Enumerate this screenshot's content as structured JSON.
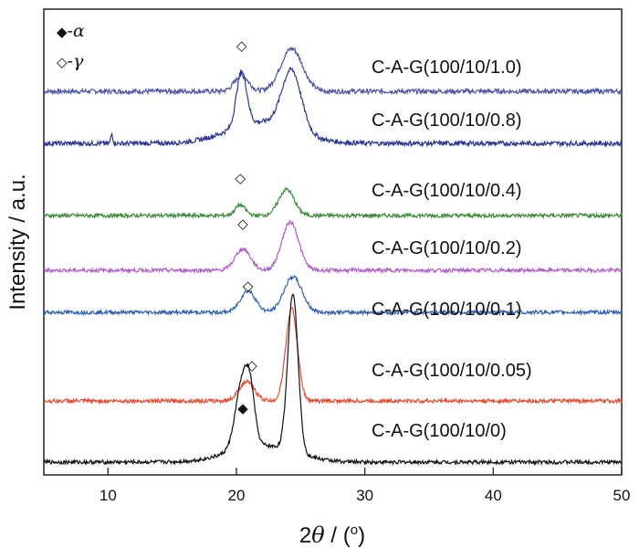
{
  "chart_data": {
    "type": "line",
    "title": "",
    "xlabel_prefix": "2",
    "xlabel_theta": "θ",
    "xlabel_suffix": " / (",
    "xlabel_degree": "o",
    "xlabel_close": ")",
    "ylabel": "Intensity / a.u.",
    "xlim": [
      5,
      50
    ],
    "x_ticks": [
      10,
      20,
      30,
      40,
      50
    ],
    "y_ticks": [],
    "grid": false,
    "legend": [
      {
        "symbol": "◆",
        "separator": "-",
        "name": "α"
      },
      {
        "symbol": "◇",
        "separator": "-",
        "name": "γ"
      }
    ],
    "series": [
      {
        "name": "C-A-G(100/10/1.0)",
        "color": "#4a55a8",
        "baseline": 0.0,
        "peaks": [
          [
            20.4,
            0.33,
            0.55
          ],
          [
            24.3,
            0.9,
            0.85
          ]
        ],
        "bump_extra": [],
        "noise": 0.05,
        "marker": {
          "x": 20.4,
          "symbol": "◇"
        }
      },
      {
        "name": "C-A-G(100/10/0.8)",
        "color": "#283593",
        "baseline": 0.0,
        "peaks": [
          [
            20.4,
            1.15,
            0.4
          ],
          [
            24.3,
            1.25,
            0.75
          ],
          [
            10.3,
            0.2,
            0.08
          ]
        ],
        "bump_extra": [
          [
            22.0,
            0.45,
            2.6
          ]
        ],
        "noise": 0.05,
        "marker": null
      },
      {
        "name": "C-A-G(100/10/0.4)",
        "color": "#3c8c35",
        "baseline": 0.0,
        "peaks": [
          [
            20.3,
            0.22,
            0.4
          ],
          [
            23.9,
            0.55,
            0.6
          ]
        ],
        "bump_extra": [],
        "noise": 0.04,
        "marker": {
          "x": 20.3,
          "symbol": "◇"
        }
      },
      {
        "name": "C-A-G(100/10/0.2)",
        "color": "#b05cc9",
        "baseline": 0.0,
        "peaks": [
          [
            20.5,
            0.45,
            0.6
          ],
          [
            24.2,
            1.02,
            0.65
          ]
        ],
        "bump_extra": [],
        "noise": 0.04,
        "marker": {
          "x": 20.5,
          "symbol": "◇"
        }
      },
      {
        "name": "C-A-G(100/10/0.1)",
        "color": "#2f5fb5",
        "baseline": 0.0,
        "peaks": [
          [
            20.9,
            0.45,
            0.6
          ],
          [
            24.4,
            0.75,
            0.7
          ]
        ],
        "bump_extra": [],
        "noise": 0.04,
        "marker": {
          "x": 20.9,
          "symbol": "◇"
        }
      },
      {
        "name": "C-A-G(100/10/0.05)",
        "color": "#e8492c",
        "baseline": 0.0,
        "peaks": [
          [
            20.8,
            0.4,
            0.6
          ],
          [
            24.3,
            1.95,
            0.45
          ]
        ],
        "bump_extra": [],
        "noise": 0.04,
        "marker": {
          "x": 21.2,
          "symbol": "◇"
        }
      },
      {
        "name": "C-A-G(100/10/0)",
        "color": "#111111",
        "baseline": 0.0,
        "peaks": [
          [
            20.5,
            1.45,
            0.55
          ],
          [
            21.1,
            0.7,
            0.35
          ],
          [
            24.4,
            3.35,
            0.4
          ]
        ],
        "bump_extra": [
          [
            22.0,
            0.35,
            2.5
          ]
        ],
        "noise": 0.04,
        "marker": {
          "x": 20.5,
          "symbol": "◆"
        }
      }
    ]
  }
}
